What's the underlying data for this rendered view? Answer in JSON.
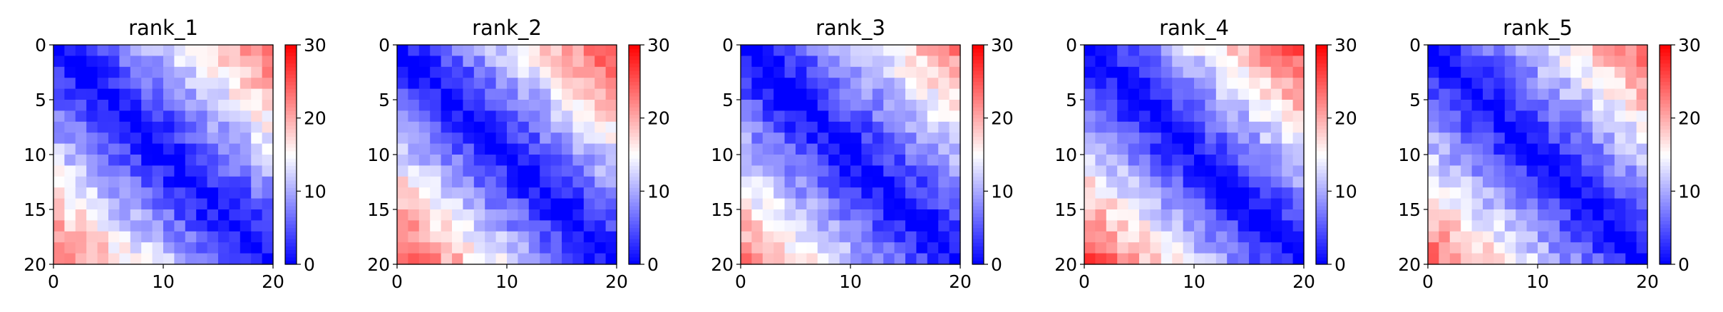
{
  "colors": {
    "low": "#0000ff",
    "mid": "#ffffff",
    "high": "#ff0000"
  },
  "chart_data": [
    {
      "type": "heatmap",
      "title": "rank_1",
      "grid_size": 20,
      "xlim": [
        0,
        20
      ],
      "ylim": [
        20,
        0
      ],
      "x_ticks": [
        0,
        10,
        20
      ],
      "y_ticks": [
        0,
        5,
        10,
        15,
        20
      ],
      "colorbar": {
        "min": 0,
        "max": 30,
        "ticks": [
          0,
          10,
          20,
          30
        ]
      },
      "grid": false,
      "pattern": "distance-like: 0 on diagonal, ~22-26 at far corners"
    },
    {
      "type": "heatmap",
      "title": "rank_2",
      "grid_size": 20,
      "xlim": [
        0,
        20
      ],
      "ylim": [
        20,
        0
      ],
      "x_ticks": [
        0,
        10,
        20
      ],
      "y_ticks": [
        0,
        5,
        10,
        15,
        20
      ],
      "colorbar": {
        "min": 0,
        "max": 30,
        "ticks": [
          0,
          10,
          20,
          30
        ]
      },
      "grid": false,
      "pattern": "distance-like: 0 on diagonal, ~24-28 at far corners"
    },
    {
      "type": "heatmap",
      "title": "rank_3",
      "grid_size": 20,
      "xlim": [
        0,
        20
      ],
      "ylim": [
        20,
        0
      ],
      "x_ticks": [
        0,
        10,
        20
      ],
      "y_ticks": [
        0,
        5,
        10,
        15,
        20
      ],
      "colorbar": {
        "min": 0,
        "max": 30,
        "ticks": [
          0,
          10,
          20,
          30
        ]
      },
      "grid": false,
      "pattern": "distance-like: 0 on diagonal, ~20-24 at far corners"
    },
    {
      "type": "heatmap",
      "title": "rank_4",
      "grid_size": 20,
      "xlim": [
        0,
        20
      ],
      "ylim": [
        20,
        0
      ],
      "x_ticks": [
        0,
        10,
        20
      ],
      "y_ticks": [
        0,
        5,
        10,
        15,
        20
      ],
      "colorbar": {
        "min": 0,
        "max": 30,
        "ticks": [
          0,
          10,
          20,
          30
        ]
      },
      "grid": false,
      "pattern": "distance-like: 0 on diagonal, ~24-28 at far corners"
    },
    {
      "type": "heatmap",
      "title": "rank_5",
      "grid_size": 20,
      "xlim": [
        0,
        20
      ],
      "ylim": [
        20,
        0
      ],
      "x_ticks": [
        0,
        10,
        20
      ],
      "y_ticks": [
        0,
        5,
        10,
        15,
        20
      ],
      "colorbar": {
        "min": 0,
        "max": 30,
        "ticks": [
          0,
          10,
          20,
          30
        ]
      },
      "grid": false,
      "pattern": "distance-like: 0 on diagonal, ~22-26 at far corners"
    }
  ]
}
